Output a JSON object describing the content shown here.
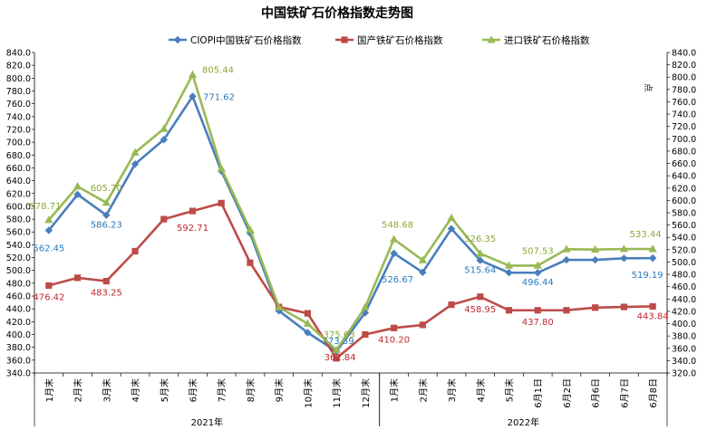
{
  "chart_data": {
    "type": "line",
    "title": "中国铁矿石价格指数走势图",
    "ylabel_right": "点",
    "ylim": [
      340,
      840
    ],
    "ylim_right": [
      320,
      840
    ],
    "categories": [
      "1月末",
      "2月末",
      "3月末",
      "4月末",
      "5月末",
      "6月末",
      "7月末",
      "8月末",
      "9月末",
      "10月末",
      "11月末",
      "12月末",
      "1月末",
      "2月末",
      "3月末",
      "4月末",
      "5月末",
      "6月1日",
      "6月2日",
      "6月6日",
      "6月7日",
      "6月8日"
    ],
    "category_groups": [
      {
        "label": "2021年",
        "from": 0,
        "to": 11
      },
      {
        "label": "2022年",
        "from": 12,
        "to": 21
      }
    ],
    "series": [
      {
        "name": "CIOPI中国铁矿石价格指数",
        "color": "#4a7ebb",
        "marker": "diamond",
        "values": [
          562.45,
          618.5,
          586.23,
          666.0,
          704.0,
          771.62,
          655.0,
          558.0,
          437.0,
          403.0,
          373.59,
          434.0,
          526.67,
          497.0,
          565.0,
          515.64,
          496.5,
          496.44,
          516.5,
          516.5,
          519.0,
          519.19
        ],
        "labels": {
          "0": "562.45",
          "2": "586.23",
          "5": "771.62",
          "10": "373.59",
          "12": "526.67",
          "15": "515.64",
          "17": "496.44",
          "21": "519.19"
        }
      },
      {
        "name": "国产铁矿石价格指数",
        "color": "#be4b48",
        "marker": "square",
        "values": [
          476.42,
          488.5,
          483.25,
          530.0,
          580.0,
          592.71,
          605.0,
          512.0,
          443.0,
          433.0,
          362.84,
          400.0,
          410.2,
          415.0,
          446.5,
          458.95,
          437.8,
          437.8,
          437.8,
          442.0,
          443.0,
          443.84
        ],
        "labels": {
          "0": "476.42",
          "2": "483.25",
          "5": "592.71",
          "10": "362.84",
          "12": "410.20",
          "15": "458.95",
          "17": "437.80",
          "21": "443.84"
        }
      },
      {
        "name": "进口铁矿石价格指数",
        "color": "#98b954",
        "marker": "triangle",
        "values": [
          578.71,
          631.0,
          605.7,
          684.0,
          721.0,
          805.44,
          659.0,
          563.5,
          442.5,
          417.0,
          375.63,
          442.5,
          548.68,
          516.0,
          582.0,
          526.35,
          507.5,
          507.53,
          533.0,
          532.5,
          533.5,
          533.44
        ],
        "labels": {
          "0": "578.71",
          "2": "605.70",
          "5": "805.44",
          "10": "375.63",
          "12": "548.68",
          "15": "526.35",
          "17": "507.53",
          "21": "533.44"
        }
      }
    ],
    "grid": false,
    "legend_position": "top"
  }
}
